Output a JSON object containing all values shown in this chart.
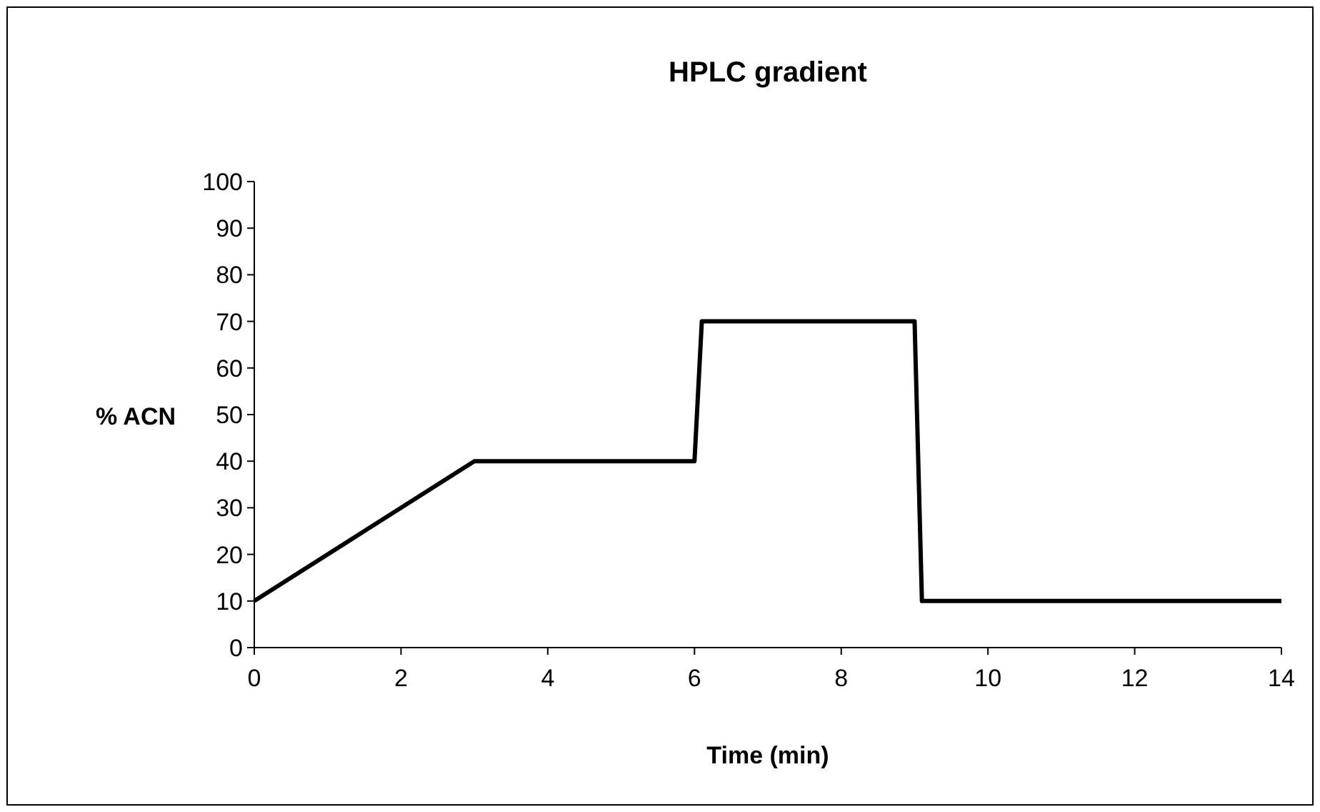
{
  "chart_data": {
    "type": "line",
    "title": "HPLC gradient",
    "xlabel": "Time (min)",
    "ylabel": "% ACN",
    "x": [
      0,
      3,
      6,
      6.1,
      9,
      9.1,
      14
    ],
    "series": [
      {
        "color": "#000000",
        "values": [
          10,
          40,
          40,
          70,
          70,
          10,
          10
        ]
      }
    ],
    "xlim": [
      0,
      14
    ],
    "xticks": [
      0,
      2,
      4,
      6,
      8,
      10,
      12,
      14
    ],
    "ylim": [
      0,
      100
    ],
    "yticks": [
      0,
      10,
      20,
      30,
      40,
      50,
      60,
      70,
      80,
      90,
      100
    ],
    "grid": false,
    "marker": "none",
    "line_style": "solid"
  }
}
